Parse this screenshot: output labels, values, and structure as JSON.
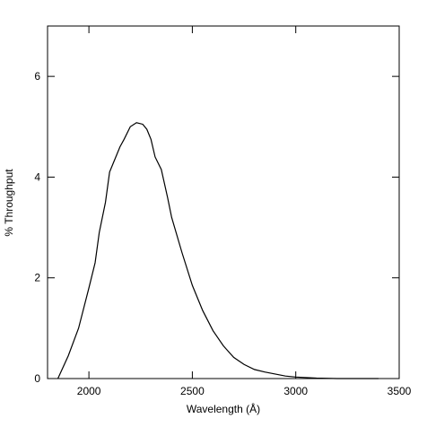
{
  "chart_data": {
    "type": "line",
    "x_label": "Wavelength (Å)",
    "y_label": "% Throughput",
    "x": [
      1850,
      1900,
      1950,
      2000,
      2030,
      2050,
      2080,
      2100,
      2130,
      2150,
      2170,
      2200,
      2230,
      2260,
      2280,
      2300,
      2320,
      2350,
      2380,
      2400,
      2450,
      2500,
      2550,
      2600,
      2650,
      2700,
      2750,
      2800,
      2850,
      2900,
      2950,
      3000,
      3100,
      3200,
      3400
    ],
    "series": [
      {
        "color": "#000000",
        "values": [
          0,
          0.45,
          1.0,
          1.8,
          2.3,
          2.9,
          3.5,
          4.1,
          4.4,
          4.6,
          4.75,
          5.0,
          5.08,
          5.05,
          4.95,
          4.75,
          4.4,
          4.15,
          3.6,
          3.2,
          2.5,
          1.85,
          1.35,
          0.95,
          0.65,
          0.42,
          0.28,
          0.18,
          0.13,
          0.09,
          0.05,
          0.03,
          0.01,
          0,
          0
        ]
      }
    ],
    "xlim": [
      1800,
      3500
    ],
    "ylim": [
      0,
      7
    ],
    "xticks": [
      2000,
      2500,
      3000,
      3500
    ],
    "yticks": [
      0,
      2,
      4,
      6
    ]
  }
}
